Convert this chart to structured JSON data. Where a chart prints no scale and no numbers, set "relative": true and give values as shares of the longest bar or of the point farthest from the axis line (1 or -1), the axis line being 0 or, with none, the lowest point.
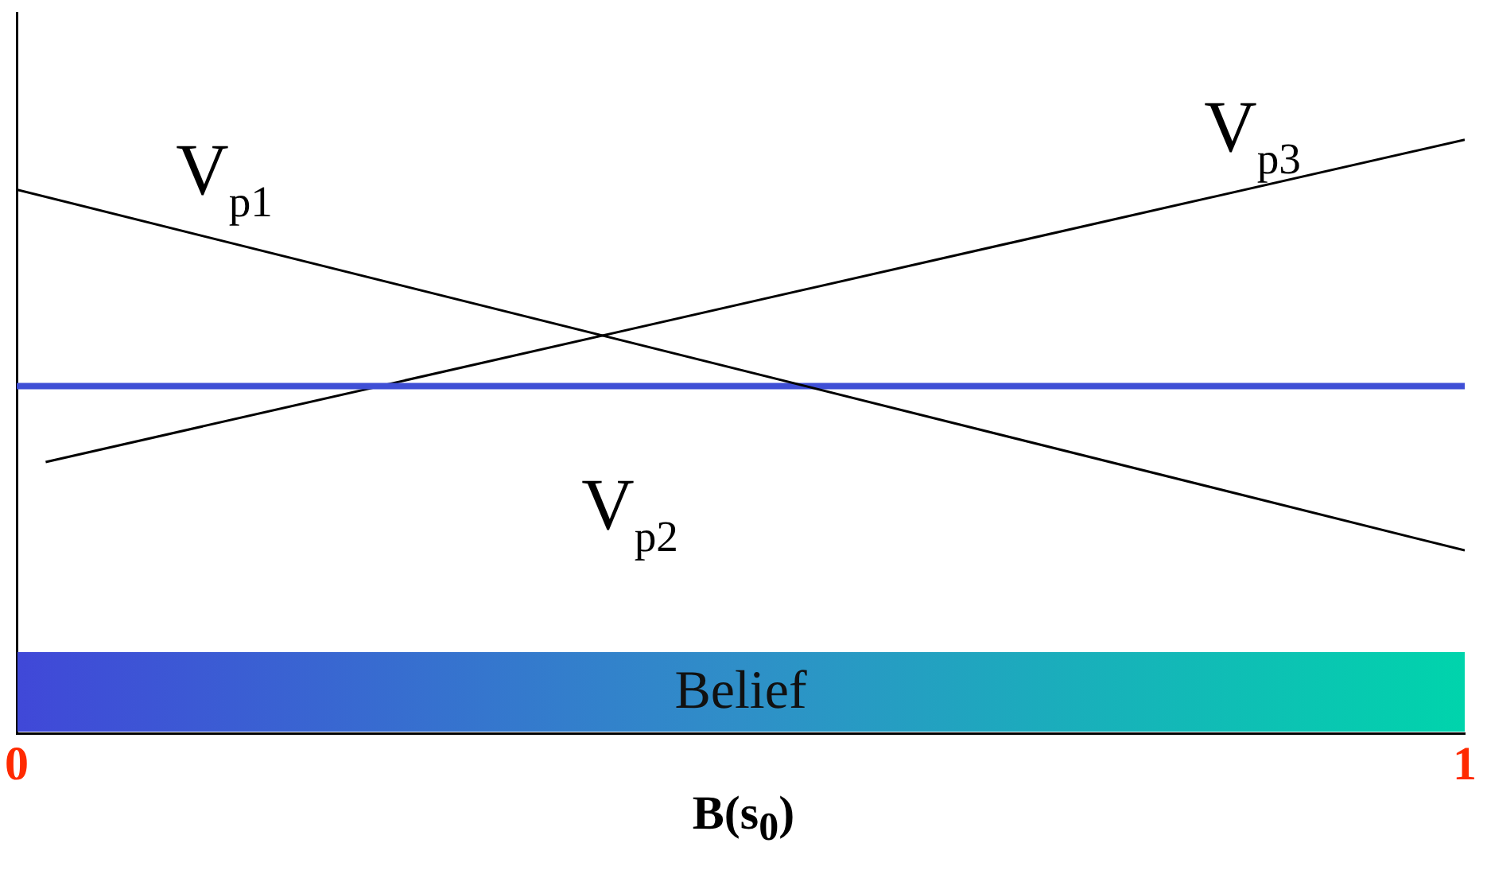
{
  "chart_data": {
    "type": "line",
    "relative": true,
    "xlabel": "B(s$_{0}$)",
    "xlim": [
      0,
      1
    ],
    "xticks": [
      0,
      1
    ],
    "grid": false,
    "legend": false,
    "marker": "none",
    "line_style": "solid",
    "annotations": [
      "Belief"
    ],
    "series": [
      {
        "name": "V$_{p1}$",
        "color": "#000000",
        "x": [
          0,
          1
        ],
        "values": [
          0.916,
          0.308
        ]
      },
      {
        "name": "V$_{p2}$",
        "color": "#3f4fd6",
        "x": [
          0,
          1
        ],
        "values": [
          0.585,
          0.585
        ]
      },
      {
        "name": "V$_{p3}$",
        "color": "#000000",
        "x": [
          0.02,
          1
        ],
        "values": [
          0.457,
          1
        ]
      }
    ]
  }
}
